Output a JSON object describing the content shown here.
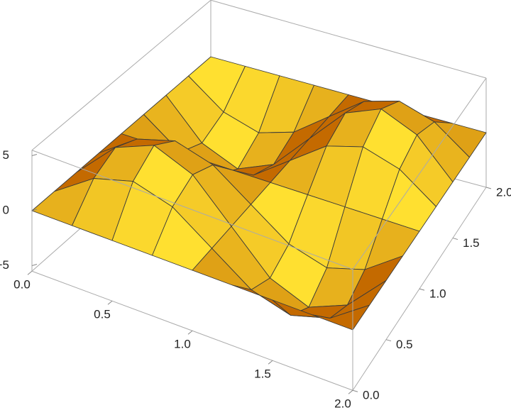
{
  "chart_data": {
    "type": "surface",
    "x": [
      0,
      0.25,
      0.5,
      0.75,
      1,
      1.25,
      1.5,
      1.75,
      2
    ],
    "y": [
      0,
      0.25,
      0.5,
      0.75,
      1,
      1.25,
      1.5,
      1.75,
      2
    ],
    "z": [
      [
        0,
        0,
        0,
        0,
        0,
        0,
        0,
        0,
        0
      ],
      [
        0,
        2.5,
        3.54,
        2.5,
        0,
        -2.5,
        -3.54,
        -2.5,
        0
      ],
      [
        0,
        3.54,
        5,
        3.54,
        0,
        -3.54,
        -5,
        -3.54,
        0
      ],
      [
        0,
        2.5,
        3.54,
        2.5,
        0,
        -2.5,
        -3.54,
        -2.5,
        0
      ],
      [
        0,
        0,
        0,
        0,
        0,
        0,
        0,
        0,
        0
      ],
      [
        0,
        -2.5,
        -3.54,
        -2.5,
        0,
        2.5,
        3.54,
        2.5,
        0
      ],
      [
        0,
        -3.54,
        -5,
        -3.54,
        0,
        3.54,
        5,
        3.54,
        0
      ],
      [
        0,
        -2.5,
        -3.54,
        -2.5,
        0,
        2.5,
        3.54,
        2.5,
        0
      ],
      [
        0,
        0,
        0,
        0,
        0,
        0,
        0,
        0,
        0
      ]
    ],
    "xlim": [
      0,
      2
    ],
    "ylim": [
      0,
      2
    ],
    "zlim": [
      -5.5,
      5.5
    ],
    "xticks": [
      {
        "value": 0,
        "label": "0.0"
      },
      {
        "value": 0.5,
        "label": "0.5"
      },
      {
        "value": 1,
        "label": "1.0"
      },
      {
        "value": 1.5,
        "label": "1.5"
      },
      {
        "value": 2,
        "label": "2.0"
      }
    ],
    "yticks": [
      {
        "value": 0,
        "label": "0.0"
      },
      {
        "value": 0.5,
        "label": "0.5"
      },
      {
        "value": 1,
        "label": "1.0"
      },
      {
        "value": 1.5,
        "label": "1.5"
      },
      {
        "value": 2,
        "label": "2.0"
      }
    ],
    "zticks": [
      {
        "value": -5,
        "label": "−5"
      },
      0,
      5
    ],
    "colors": [
      "#c46a00",
      "#ffe030"
    ],
    "mesh_color": "#3a3a3a",
    "box_color": "#aaaaaa"
  }
}
